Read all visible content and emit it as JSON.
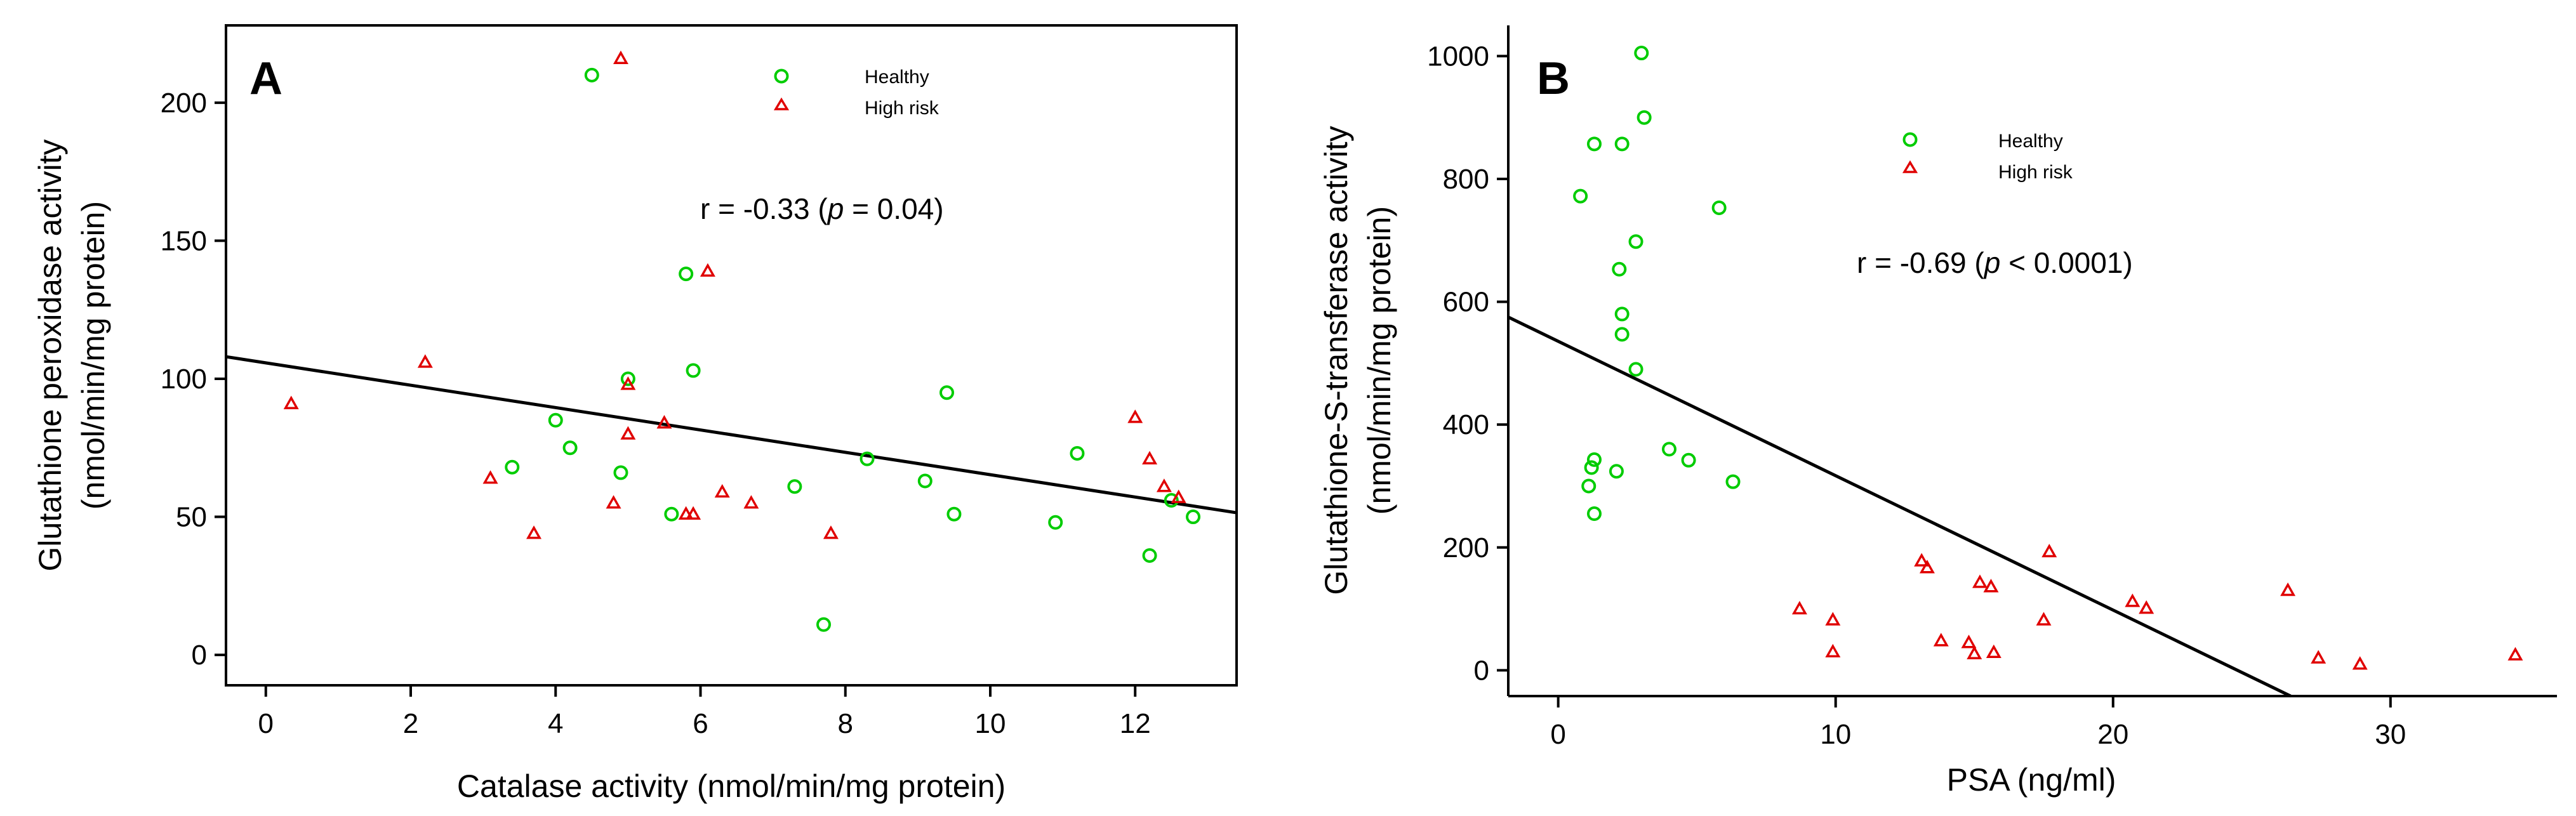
{
  "colors": {
    "healthy": "#00cc00",
    "high_risk": "#e00000"
  },
  "chart_data": [
    {
      "type": "scatter",
      "panel": "A",
      "xlabel": "Catalase activity (nmol/min/mg  protein)",
      "ylabel_line1": "Glutathione peroxidase activity",
      "ylabel_line2": "(nmol/min/mg  protein)",
      "xlim": [
        -0.55,
        13.4
      ],
      "ylim": [
        -11,
        228
      ],
      "xticks": [
        0,
        2,
        4,
        6,
        8,
        10,
        12
      ],
      "yticks": [
        0,
        50,
        100,
        150,
        200
      ],
      "legend": {
        "healthy": "Healthy",
        "high_risk": "High risk",
        "placement": "top-center"
      },
      "annotation": {
        "prefix": "r = -0.33 (",
        "p": "p",
        "suffix": " = 0.04)"
      },
      "fit_line": {
        "x": [
          -0.55,
          13.4
        ],
        "y": [
          108,
          51.5
        ]
      },
      "series": [
        {
          "name": "Healthy",
          "marker": "circle",
          "points": [
            [
              4.5,
              210
            ],
            [
              5.8,
              138
            ],
            [
              5.9,
              103
            ],
            [
              5.0,
              100
            ],
            [
              4.0,
              85
            ],
            [
              3.4,
              68
            ],
            [
              4.2,
              75
            ],
            [
              4.9,
              66
            ],
            [
              5.6,
              51
            ],
            [
              7.3,
              61
            ],
            [
              8.3,
              71
            ],
            [
              9.4,
              95
            ],
            [
              9.1,
              63
            ],
            [
              9.5,
              51
            ],
            [
              7.7,
              11
            ],
            [
              10.9,
              48
            ],
            [
              11.2,
              73
            ],
            [
              12.2,
              36
            ],
            [
              12.5,
              56
            ],
            [
              12.8,
              50
            ]
          ]
        },
        {
          "name": "High risk",
          "marker": "triangle",
          "points": [
            [
              4.9,
              216
            ],
            [
              6.1,
              139
            ],
            [
              2.2,
              106
            ],
            [
              0.35,
              91
            ],
            [
              5.0,
              98
            ],
            [
              5.0,
              80
            ],
            [
              5.5,
              84
            ],
            [
              3.1,
              64
            ],
            [
              3.7,
              44
            ],
            [
              4.8,
              55
            ],
            [
              5.8,
              51
            ],
            [
              5.9,
              51
            ],
            [
              6.3,
              59
            ],
            [
              6.7,
              55
            ],
            [
              7.8,
              44
            ],
            [
              12.0,
              86
            ],
            [
              12.2,
              71
            ],
            [
              12.4,
              61
            ],
            [
              12.6,
              57
            ]
          ]
        }
      ]
    },
    {
      "type": "scatter",
      "panel": "B",
      "xlabel": "PSA (ng/ml)",
      "ylabel_line1": "Glutathione-S-transferase activity",
      "ylabel_line2": "(nmol/min/mg protein)",
      "xlim": [
        -1.8,
        36
      ],
      "ylim": [
        -42,
        1050
      ],
      "xticks": [
        0,
        10,
        20,
        30
      ],
      "yticks": [
        0,
        200,
        400,
        600,
        800,
        1000
      ],
      "legend": {
        "healthy": "Healthy",
        "high_risk": "High risk",
        "placement": "top-center"
      },
      "annotation": {
        "prefix": "r = -0.69 (",
        "p": "p",
        "suffix": " < 0.0001)"
      },
      "fit_line": {
        "x": [
          -1.8,
          26.4
        ],
        "y": [
          575,
          -42
        ]
      },
      "series": [
        {
          "name": "Healthy",
          "marker": "circle",
          "points": [
            [
              3.0,
              1005
            ],
            [
              3.1,
              900
            ],
            [
              1.3,
              857
            ],
            [
              2.3,
              857
            ],
            [
              0.8,
              772
            ],
            [
              5.8,
              753
            ],
            [
              2.8,
              698
            ],
            [
              2.2,
              653
            ],
            [
              2.3,
              580
            ],
            [
              2.3,
              547
            ],
            [
              2.8,
              490
            ],
            [
              4.0,
              360
            ],
            [
              4.7,
              342
            ],
            [
              1.3,
              343
            ],
            [
              1.2,
              330
            ],
            [
              2.1,
              324
            ],
            [
              1.1,
              300
            ],
            [
              6.3,
              307
            ],
            [
              1.3,
              255
            ]
          ]
        },
        {
          "name": "High risk",
          "marker": "triangle",
          "points": [
            [
              8.7,
              100
            ],
            [
              9.9,
              82
            ],
            [
              9.9,
              30
            ],
            [
              13.1,
              178
            ],
            [
              13.3,
              167
            ],
            [
              13.8,
              48
            ],
            [
              14.8,
              45
            ],
            [
              15.0,
              27
            ],
            [
              15.2,
              143
            ],
            [
              15.6,
              136
            ],
            [
              15.7,
              29
            ],
            [
              17.5,
              82
            ],
            [
              17.7,
              193
            ],
            [
              20.7,
              112
            ],
            [
              21.2,
              101
            ],
            [
              26.3,
              130
            ],
            [
              27.4,
              20
            ],
            [
              28.9,
              10
            ],
            [
              34.5,
              25
            ]
          ]
        }
      ]
    }
  ]
}
